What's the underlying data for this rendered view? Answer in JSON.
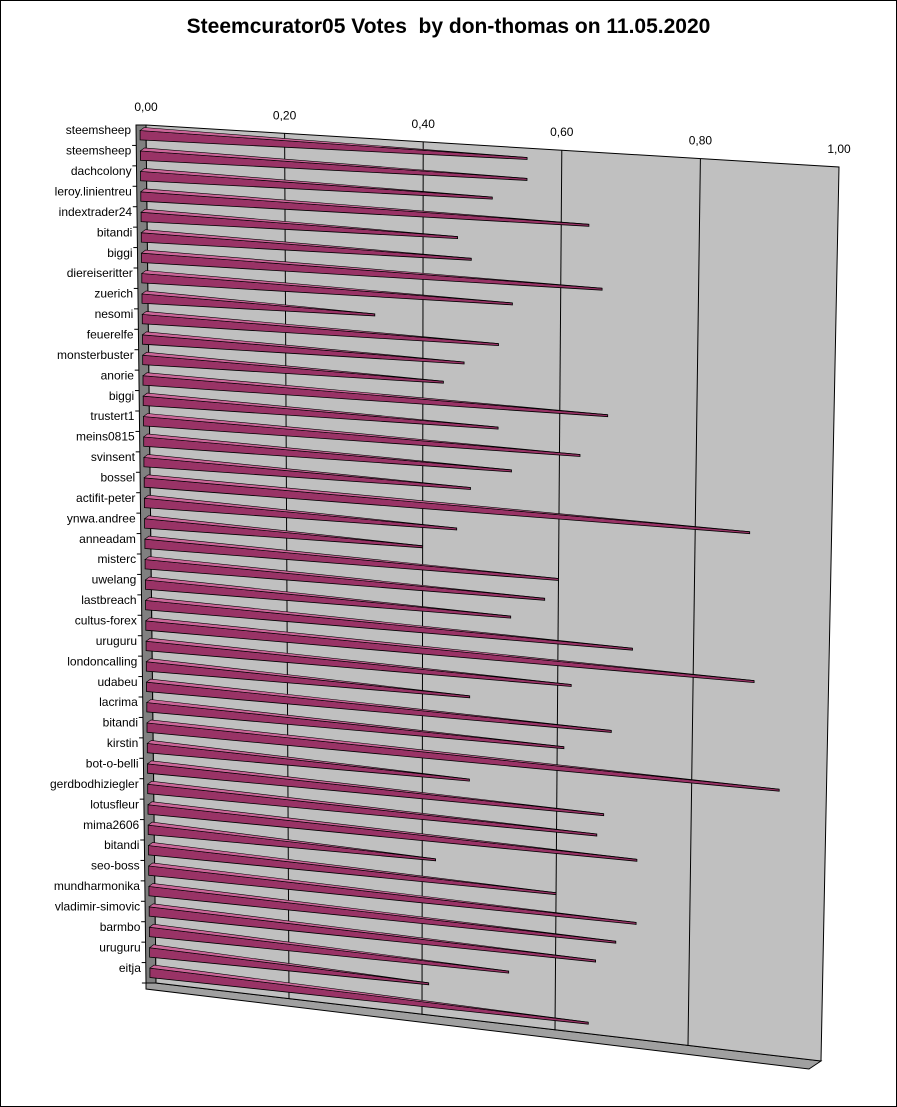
{
  "chart_data": {
    "type": "bar",
    "orientation": "horizontal",
    "style": "3d",
    "title": "Steemcurator05 Votes  by don-thomas on 11.05.2020",
    "xlabel": "",
    "ylabel": "",
    "xlim": [
      0,
      1
    ],
    "x_ticks": [
      "0,00",
      "0,20",
      "0,40",
      "0,60",
      "0,80",
      "1,00"
    ],
    "grid": true,
    "legend": "none",
    "colors": {
      "bar_face": "#993366",
      "bar_top": "#cc6699",
      "bar_side": "#4d1a33",
      "wall": "#c0c0c0",
      "wall_side": "#808080",
      "floor": "#a0a0a0"
    },
    "categories": [
      "steemsheep",
      "steemsheep",
      "dachcolony",
      "leroy.linientreu",
      "indextrader24",
      "bitandi",
      "biggi",
      "diereiseritter",
      "zuerich",
      "nesomi",
      "feuerelfe",
      "monsterbuster",
      "anorie",
      "biggi",
      "trustert1",
      "meins0815",
      "svinsent",
      "bossel",
      "actifit-peter",
      "ynwa.andree",
      "anneadam",
      "misterc",
      "uwelang",
      "lastbreach",
      "cultus-forex",
      "uruguru",
      "londoncalling",
      "udabeu",
      "lacrima",
      "bitandi",
      "kirstin",
      "bot-o-belli",
      "gerdbodhiziegler",
      "lotusfleur",
      "mima2606",
      "bitandi",
      "seo-boss",
      "mundharmonika",
      "vladimir-simovic",
      "barmbo",
      "uruguru",
      "eitja"
    ],
    "values": [
      0.55,
      0.55,
      0.5,
      0.64,
      0.45,
      0.47,
      0.66,
      0.53,
      0.33,
      0.51,
      0.46,
      0.43,
      0.67,
      0.51,
      0.63,
      0.53,
      0.47,
      0.88,
      0.45,
      0.4,
      0.6,
      0.58,
      0.53,
      0.71,
      0.89,
      0.62,
      0.47,
      0.68,
      0.61,
      0.93,
      0.47,
      0.67,
      0.66,
      0.72,
      0.42,
      0.6,
      0.72,
      0.69,
      0.66,
      0.53,
      0.41,
      0.65
    ]
  }
}
